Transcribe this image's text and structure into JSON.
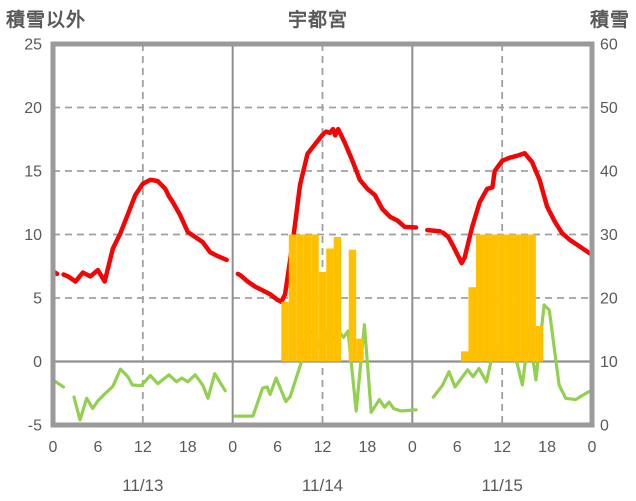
{
  "header": {
    "left_axis_title": "積雪以外",
    "chart_title": "宇都宮",
    "right_axis_title": "積雪"
  },
  "chart_data": {
    "type": "combo (hourly bars + line series, dual y-axis)",
    "title": "宇都宮",
    "station": "宇都宮",
    "x_axis": {
      "unit": "hour",
      "span_hours": 72,
      "tick_hours": [
        0,
        6,
        12,
        18,
        24,
        30,
        36,
        42,
        48,
        54,
        60,
        66,
        72
      ],
      "tick_labels": [
        "0",
        "6",
        "12",
        "18",
        "0",
        "6",
        "12",
        "18",
        "0",
        "6",
        "12",
        "18",
        "0"
      ],
      "date_labels": [
        "11/13",
        "11/14",
        "11/15"
      ],
      "date_center_hours": [
        12,
        36,
        60
      ],
      "day_boundary_solid_hours": [
        24,
        48
      ],
      "noon_dashed_hours": [
        12,
        36,
        60
      ]
    },
    "left_axis": {
      "title": "積雪以外",
      "range": [
        -5,
        25
      ],
      "tick_values": [
        25,
        20,
        15,
        10,
        5,
        0,
        -5
      ],
      "tick_labels": [
        "25",
        "20",
        "15",
        "10",
        "5",
        "0",
        "-5"
      ],
      "dashed_gridlines_at": [
        20,
        15,
        10,
        5
      ],
      "solid_line_at": 0
    },
    "right_axis": {
      "title": "積雪",
      "range": [
        0,
        60
      ],
      "tick_values": [
        60,
        50,
        40,
        30,
        20,
        10,
        0
      ],
      "tick_labels": [
        "60",
        "50",
        "40",
        "30",
        "20",
        "10",
        "0"
      ],
      "mapping_note": "right_value = (left_value + 5) * 2"
    },
    "grid": {
      "horizontal": true,
      "vertical_noon_dashed": true,
      "legend": "none"
    },
    "series": [
      {
        "name": "red-line",
        "type": "line",
        "axis": "left",
        "color": "#f40505",
        "width": 4.5,
        "segments": [
          [
            [
              0,
              7.1
            ],
            [
              0.55,
              6.9
            ]
          ],
          [
            [
              1.4,
              6.85
            ],
            [
              2,
              6.7
            ],
            [
              3,
              6.3
            ],
            [
              4,
              7.0
            ],
            [
              5,
              6.7
            ],
            [
              6,
              7.2
            ],
            [
              6.9,
              6.3
            ],
            [
              8,
              8.9
            ],
            [
              9,
              10.1
            ],
            [
              10,
              11.6
            ],
            [
              11,
              13.1
            ],
            [
              12,
              14.0
            ],
            [
              13,
              14.3
            ],
            [
              13.6,
              14.25
            ],
            [
              14,
              14.2
            ],
            [
              15,
              13.6
            ],
            [
              15.5,
              13.0
            ],
            [
              16,
              12.55
            ],
            [
              17,
              11.5
            ],
            [
              18,
              10.2
            ],
            [
              19,
              9.8
            ],
            [
              20,
              9.4
            ],
            [
              21,
              8.6
            ],
            [
              22,
              8.3
            ],
            [
              23.2,
              8.0
            ]
          ],
          [
            [
              24.7,
              6.9
            ],
            [
              25,
              6.8
            ],
            [
              26,
              6.3
            ],
            [
              27,
              5.9
            ],
            [
              28,
              5.6
            ],
            [
              29,
              5.3
            ],
            [
              30,
              4.85
            ],
            [
              30.5,
              4.7
            ],
            [
              31,
              5.3
            ],
            [
              32,
              9.3
            ],
            [
              33,
              13.9
            ],
            [
              34,
              16.35
            ],
            [
              35,
              17.1
            ],
            [
              36,
              17.85
            ],
            [
              36.5,
              18.1
            ],
            [
              37,
              18.0
            ],
            [
              37.4,
              18.3
            ],
            [
              37.7,
              17.8
            ],
            [
              38.1,
              18.3
            ],
            [
              39,
              17.2
            ],
            [
              40,
              15.8
            ],
            [
              41,
              14.3
            ],
            [
              42,
              13.6
            ],
            [
              43,
              13.1
            ],
            [
              44,
              12.0
            ],
            [
              45,
              11.4
            ],
            [
              46,
              11.1
            ],
            [
              47,
              10.6
            ],
            [
              48.5,
              10.55
            ]
          ],
          [
            [
              50,
              10.35
            ],
            [
              51.7,
              10.25
            ]
          ],
          [
            [
              52.1,
              10.15
            ],
            [
              52.8,
              9.8
            ],
            [
              53.4,
              9.15
            ],
            [
              54.6,
              7.75
            ],
            [
              55,
              8.2
            ],
            [
              56,
              10.6
            ],
            [
              57,
              12.55
            ],
            [
              58,
              13.6
            ],
            [
              58.7,
              13.7
            ],
            [
              59,
              15.0
            ],
            [
              60,
              15.8
            ],
            [
              61,
              16.05
            ],
            [
              62,
              16.2
            ],
            [
              63,
              16.4
            ],
            [
              64,
              15.7
            ],
            [
              65,
              14.3
            ],
            [
              66,
              12.2
            ],
            [
              67,
              11.05
            ],
            [
              68,
              10.1
            ],
            [
              69,
              9.6
            ],
            [
              70,
              9.2
            ],
            [
              71,
              8.8
            ],
            [
              72,
              8.4
            ]
          ]
        ]
      },
      {
        "name": "green-line",
        "type": "line",
        "axis": "left (right-axis equivalent = (v+5)*2)",
        "color": "#92d050",
        "width": 3.2,
        "segments": [
          [
            [
              0,
              -1.45
            ],
            [
              1.4,
              -2.0
            ]
          ],
          [
            [
              2.8,
              -2.8
            ],
            [
              3.6,
              -4.6
            ],
            [
              4.5,
              -2.9
            ],
            [
              5.3,
              -3.7
            ],
            [
              6,
              -3.1
            ],
            [
              7,
              -2.5
            ],
            [
              8,
              -1.95
            ],
            [
              9,
              -0.6
            ],
            [
              10,
              -1.2
            ],
            [
              10.6,
              -1.85
            ],
            [
              11.8,
              -1.9
            ],
            [
              13,
              -1.1
            ],
            [
              14,
              -1.75
            ],
            [
              15.5,
              -1.05
            ],
            [
              16.5,
              -1.6
            ],
            [
              17.2,
              -1.3
            ],
            [
              18,
              -1.6
            ],
            [
              19,
              -1.05
            ],
            [
              20,
              -1.85
            ],
            [
              20.7,
              -2.9
            ],
            [
              21.6,
              -0.95
            ],
            [
              23,
              -2.3
            ]
          ],
          [
            [
              24.3,
              -4.3
            ],
            [
              26.7,
              -4.3
            ],
            [
              28,
              -2.1
            ],
            [
              28.6,
              -2.0
            ],
            [
              29,
              -2.6
            ],
            [
              29.8,
              -1.3
            ],
            [
              31.1,
              -3.15
            ],
            [
              31.7,
              -2.75
            ],
            [
              33.2,
              0.0
            ],
            [
              34,
              2.6
            ],
            [
              34.8,
              2.1
            ],
            [
              36,
              0.8
            ],
            [
              36.8,
              2.7
            ],
            [
              37.4,
              1.7
            ],
            [
              38,
              2.5
            ],
            [
              38.8,
              1.9
            ],
            [
              39.4,
              2.4
            ],
            [
              40.5,
              -3.9
            ],
            [
              41.6,
              2.9
            ],
            [
              42.5,
              -4.0
            ],
            [
              43.6,
              -3.0
            ],
            [
              44.3,
              -3.6
            ],
            [
              44.9,
              -3.2
            ],
            [
              45.5,
              -3.7
            ],
            [
              46.5,
              -3.9
            ],
            [
              48.5,
              -3.8
            ]
          ],
          [
            [
              50.8,
              -2.8
            ],
            [
              52,
              -1.9
            ],
            [
              52.9,
              -0.8
            ],
            [
              53.7,
              -2.0
            ],
            [
              55.4,
              -0.65
            ],
            [
              56.1,
              -1.2
            ],
            [
              56.9,
              -0.55
            ],
            [
              57.9,
              -1.6
            ],
            [
              59,
              1.3
            ],
            [
              60,
              0.75
            ],
            [
              61,
              0.65
            ],
            [
              62,
              -0.15
            ],
            [
              62.7,
              -1.85
            ],
            [
              63.6,
              2.45
            ],
            [
              64.5,
              -1.45
            ],
            [
              65.6,
              4.45
            ],
            [
              66.3,
              4.05
            ],
            [
              67.6,
              -1.85
            ],
            [
              68.5,
              -2.9
            ],
            [
              69.8,
              -3.0
            ],
            [
              71.2,
              -2.5
            ],
            [
              72,
              -2.25
            ]
          ]
        ]
      },
      {
        "name": "orange-bars",
        "type": "bar",
        "axis": "left",
        "color": "#ffc000",
        "baseline": 0,
        "bar_width_hours": 1,
        "bars": [
          [
            31,
            4.7
          ],
          [
            32,
            10
          ],
          [
            33,
            10
          ],
          [
            34,
            10
          ],
          [
            35,
            10
          ],
          [
            36,
            7.05
          ],
          [
            37,
            8.9
          ],
          [
            38,
            9.8
          ],
          [
            39,
            0
          ],
          [
            40,
            8.8
          ],
          [
            41,
            1.8
          ],
          [
            55,
            0.8
          ],
          [
            56,
            5.85
          ],
          [
            57,
            10
          ],
          [
            58,
            10
          ],
          [
            59,
            10
          ],
          [
            60,
            10
          ],
          [
            61,
            10
          ],
          [
            62,
            10
          ],
          [
            63,
            10
          ],
          [
            64,
            10
          ],
          [
            65,
            2.8
          ]
        ]
      }
    ],
    "colors": {
      "background": "#ffffff",
      "plot_border": "#9a9a9a",
      "grid_dashed": "#a0a0a0",
      "grid_solid": "#8f8f8f",
      "tick_text": "#595959",
      "red_series": "#f40505",
      "green_series": "#92d050",
      "orange_series": "#ffc000"
    }
  }
}
